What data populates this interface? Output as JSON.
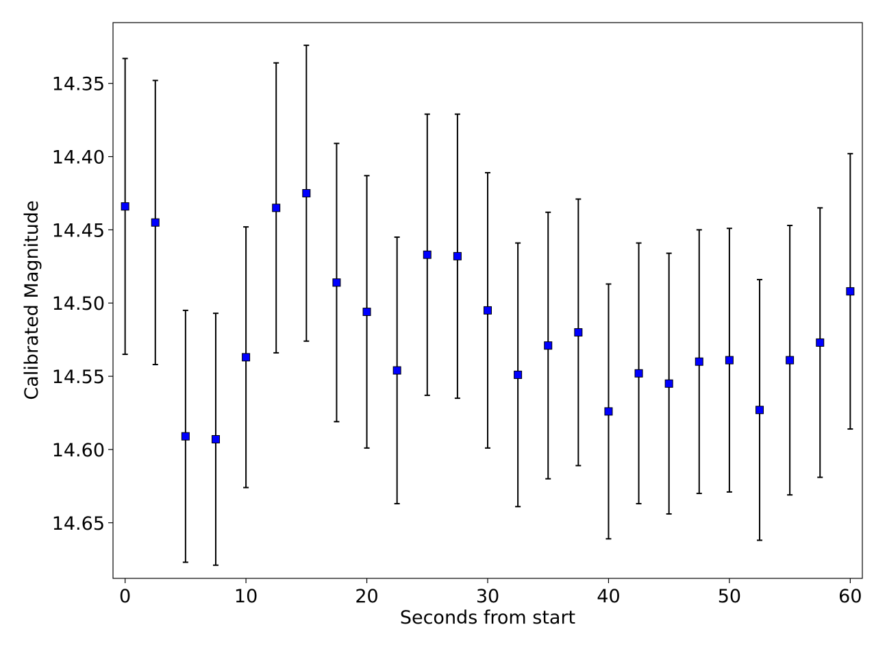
{
  "chart_data": {
    "type": "scatter",
    "title": "",
    "xlabel": "Seconds from start",
    "ylabel": "Calibrated Magnitude",
    "xlim": [
      -1,
      61
    ],
    "ylim": [
      14.688,
      14.3085
    ],
    "y_inverted": true,
    "grid": false,
    "legend": "none",
    "x_ticks": [
      0,
      10,
      20,
      30,
      40,
      50,
      60
    ],
    "x_tick_labels": [
      "0",
      "10",
      "20",
      "30",
      "40",
      "50",
      "60"
    ],
    "y_ticks": [
      14.35,
      14.4,
      14.45,
      14.5,
      14.55,
      14.6,
      14.65
    ],
    "y_tick_labels": [
      "14.35",
      "14.40",
      "14.45",
      "14.50",
      "14.55",
      "14.60",
      "14.65"
    ],
    "marker": {
      "shape": "square",
      "fill": "#0000ff",
      "edge": "#000000"
    },
    "errorbar_color": "#000000",
    "series": [
      {
        "x": [
          0,
          2.5,
          5,
          7.5,
          10,
          12.5,
          15,
          17.5,
          20,
          22.5,
          25,
          27.5,
          30,
          32.5,
          35,
          37.5,
          40,
          42.5,
          45,
          47.5,
          50,
          52.5,
          55,
          57.5,
          60
        ],
        "y": [
          14.434,
          14.445,
          14.591,
          14.593,
          14.537,
          14.435,
          14.425,
          14.486,
          14.506,
          14.546,
          14.467,
          14.468,
          14.505,
          14.549,
          14.529,
          14.52,
          14.574,
          14.548,
          14.555,
          14.54,
          14.539,
          14.573,
          14.539,
          14.527,
          14.492
        ],
        "y_err": [
          0.101,
          0.097,
          0.086,
          0.086,
          0.089,
          0.099,
          0.101,
          0.095,
          0.093,
          0.091,
          0.096,
          0.097,
          0.094,
          0.09,
          0.091,
          0.091,
          0.087,
          0.089,
          0.089,
          0.09,
          0.09,
          0.089,
          0.092,
          0.092,
          0.094
        ]
      }
    ]
  }
}
